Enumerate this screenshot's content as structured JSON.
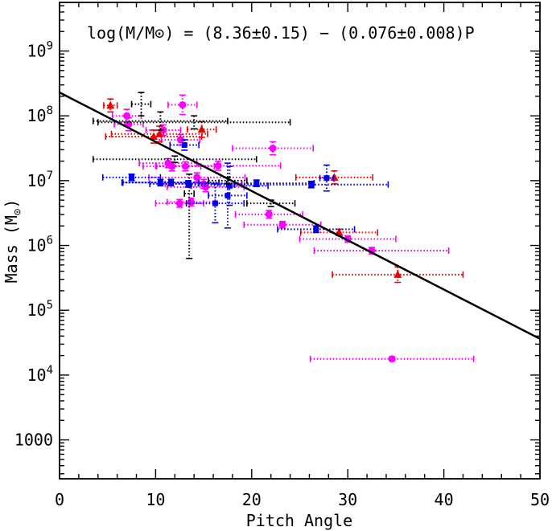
{
  "chart_data": {
    "type": "scatter",
    "title": "",
    "annotation": "log(M/M⊙) = (8.36±0.15) − (0.076±0.008)P",
    "xlabel": "Pitch Angle",
    "ylabel_main": "Mass (M",
    "ylabel_sub": "⊙",
    "ylabel_close": ")",
    "x_scale": "linear",
    "y_scale": "log",
    "xlim": [
      0,
      50
    ],
    "ylim_log10": [
      2.4,
      9.75
    ],
    "grid": false,
    "legend": "none",
    "x_ticks": [
      {
        "v": 0,
        "label": "0"
      },
      {
        "v": 10,
        "label": "10"
      },
      {
        "v": 20,
        "label": "20"
      },
      {
        "v": 30,
        "label": "30"
      },
      {
        "v": 40,
        "label": "40"
      },
      {
        "v": 50,
        "label": "50"
      }
    ],
    "y_ticks": [
      {
        "v": 3,
        "base": "1000",
        "exp": ""
      },
      {
        "v": 4,
        "base": "10",
        "exp": "4"
      },
      {
        "v": 5,
        "base": "10",
        "exp": "5"
      },
      {
        "v": 6,
        "base": "10",
        "exp": "6"
      },
      {
        "v": 7,
        "base": "10",
        "exp": "7"
      },
      {
        "v": 8,
        "base": "10",
        "exp": "8"
      },
      {
        "v": 9,
        "base": "10",
        "exp": "9"
      }
    ],
    "fit_line": {
      "intercept_log10": 8.36,
      "slope_log10_per_deg": -0.076,
      "x_range": [
        0,
        50
      ],
      "color": "#000000"
    },
    "series": [
      {
        "name": "magenta circles",
        "marker": "circle",
        "color": "#ff00ff",
        "points": [
          {
            "x": 34.6,
            "logy": 4.25,
            "xerr": [
              8.5,
              8.5
            ],
            "yerr": [
              0.03,
              0.03
            ]
          },
          {
            "x": 32.5,
            "logy": 5.92,
            "xerr": [
              6.0,
              8.0
            ],
            "yerr": [
              0.05,
              0.05
            ]
          },
          {
            "x": 30.0,
            "logy": 6.1,
            "xerr": [
              5.0,
              5.0
            ],
            "yerr": [
              0.05,
              0.05
            ]
          },
          {
            "x": 23.2,
            "logy": 6.32,
            "xerr": [
              4.0,
              4.0
            ],
            "yerr": [
              0.05,
              0.05
            ]
          },
          {
            "x": 21.8,
            "logy": 6.48,
            "xerr": [
              3.5,
              3.5
            ],
            "yerr": [
              0.06,
              0.06
            ]
          },
          {
            "x": 22.2,
            "logy": 7.5,
            "xerr": [
              4.2,
              4.2
            ],
            "yerr": [
              0.1,
              0.1
            ]
          },
          {
            "x": 12.8,
            "logy": 8.17,
            "xerr": [
              1.5,
              1.5
            ],
            "yerr": [
              0.15,
              0.15
            ]
          },
          {
            "x": 7.0,
            "logy": 8.0,
            "xerr": [
              1.5,
              1.5
            ],
            "yerr": [
              0.1,
              0.1
            ]
          },
          {
            "x": 7.2,
            "logy": 7.87,
            "xerr": [
              1.5,
              1.5
            ],
            "yerr": [
              0.1,
              0.1
            ]
          },
          {
            "x": 10.8,
            "logy": 7.78,
            "xerr": [
              1.8,
              1.8
            ],
            "yerr": [
              0.08,
              0.08
            ]
          },
          {
            "x": 12.6,
            "logy": 7.63,
            "xerr": [
              2.0,
              2.0
            ],
            "yerr": [
              0.08,
              0.08
            ]
          },
          {
            "x": 11.3,
            "logy": 7.27,
            "xerr": [
              3.0,
              3.0
            ],
            "yerr": [
              0.07,
              0.07
            ]
          },
          {
            "x": 11.7,
            "logy": 7.22,
            "xerr": [
              3.0,
              3.0
            ],
            "yerr": [
              0.07,
              0.07
            ]
          },
          {
            "x": 13.1,
            "logy": 7.22,
            "xerr": [
              3.0,
              3.0
            ],
            "yerr": [
              0.07,
              0.07
            ]
          },
          {
            "x": 16.5,
            "logy": 7.23,
            "xerr": [
              6.5,
              6.5
            ],
            "yerr": [
              0.07,
              0.07
            ]
          },
          {
            "x": 14.3,
            "logy": 7.05,
            "xerr": [
              5.0,
              5.0
            ],
            "yerr": [
              0.07,
              0.07
            ]
          },
          {
            "x": 15.0,
            "logy": 6.95,
            "xerr": [
              4.0,
              4.0
            ],
            "yerr": [
              0.07,
              0.07
            ]
          },
          {
            "x": 15.2,
            "logy": 6.9,
            "xerr": [
              4.0,
              4.0
            ],
            "yerr": [
              0.07,
              0.07
            ]
          },
          {
            "x": 12.5,
            "logy": 6.65,
            "xerr": [
              2.5,
              2.5
            ],
            "yerr": [
              0.06,
              0.06
            ]
          },
          {
            "x": 13.7,
            "logy": 6.67,
            "xerr": [
              2.5,
              2.5
            ],
            "yerr": [
              0.06,
              0.06
            ]
          }
        ]
      },
      {
        "name": "red triangles",
        "marker": "triangle",
        "color": "#ee0000",
        "points": [
          {
            "x": 5.3,
            "logy": 8.16,
            "xerr": [
              0.7,
              0.7
            ],
            "yerr": [
              0.1,
              0.1
            ]
          },
          {
            "x": 10.4,
            "logy": 7.72,
            "xerr": [
              5.0,
              5.0
            ],
            "yerr": [
              0.12,
              0.12
            ]
          },
          {
            "x": 14.8,
            "logy": 7.79,
            "xerr": [
              1.5,
              1.5
            ],
            "yerr": [
              0.12,
              0.12
            ]
          },
          {
            "x": 9.8,
            "logy": 7.68,
            "xerr": [
              5.0,
              5.0
            ],
            "yerr": [
              0.1,
              0.1
            ]
          },
          {
            "x": 28.6,
            "logy": 7.05,
            "xerr": [
              4.0,
              4.0
            ],
            "yerr": [
              0.1,
              0.1
            ]
          },
          {
            "x": 29.1,
            "logy": 6.2,
            "xerr": [
              4.0,
              4.0
            ],
            "yerr": [
              0.05,
              0.05
            ]
          },
          {
            "x": 35.2,
            "logy": 5.55,
            "xerr": [
              6.8,
              6.8
            ],
            "yerr": [
              0.12,
              0.12
            ]
          }
        ]
      },
      {
        "name": "blue squares",
        "marker": "square",
        "color": "#0000ee",
        "points": [
          {
            "x": 13.0,
            "logy": 7.55,
            "xerr": [
              1.5,
              1.5
            ],
            "yerr": [
              0.08,
              0.08
            ]
          },
          {
            "x": 7.5,
            "logy": 7.05,
            "xerr": [
              3.0,
              3.0
            ],
            "yerr": [
              0.05,
              0.05
            ]
          },
          {
            "x": 10.5,
            "logy": 6.97,
            "xerr": [
              4.0,
              4.0
            ],
            "yerr": [
              0.05,
              0.05
            ]
          },
          {
            "x": 11.6,
            "logy": 6.97,
            "xerr": [
              5.0,
              5.0
            ],
            "yerr": [
              0.05,
              0.05
            ]
          },
          {
            "x": 13.4,
            "logy": 6.95,
            "xerr": [
              4.0,
              4.0
            ],
            "yerr": [
              0.05,
              0.05
            ]
          },
          {
            "x": 17.7,
            "logy": 6.92,
            "xerr": [
              4.0,
              4.0
            ],
            "yerr": [
              0.3,
              0.3
            ]
          },
          {
            "x": 20.5,
            "logy": 6.96,
            "xerr": [
              6.0,
              6.0
            ],
            "yerr": [
              0.05,
              0.05
            ]
          },
          {
            "x": 26.2,
            "logy": 6.94,
            "xerr": [
              8.0,
              8.0
            ],
            "yerr": [
              0.05,
              0.05
            ]
          },
          {
            "x": 27.8,
            "logy": 7.04,
            "xerr": [
              0.7,
              0.7
            ],
            "yerr": [
              0.2,
              0.2
            ]
          },
          {
            "x": 17.5,
            "logy": 6.77,
            "xerr": [
              2.0,
              2.0
            ],
            "yerr": [
              0.5,
              0.5
            ]
          },
          {
            "x": 16.2,
            "logy": 6.65,
            "xerr": [
              3.0,
              3.0
            ],
            "yerr": [
              0.3,
              0.3
            ]
          },
          {
            "x": 26.7,
            "logy": 6.25,
            "xerr": [
              4.0,
              4.0
            ],
            "yerr": [
              0.05,
              0.05
            ]
          }
        ]
      },
      {
        "name": "black dots",
        "marker": "none",
        "color": "#000000",
        "points": [
          {
            "x": 8.5,
            "logy": 8.18,
            "xerr": [
              1.0,
              1.0
            ],
            "yerr": [
              0.18,
              0.18
            ]
          },
          {
            "x": 14.0,
            "logy": 7.9,
            "xerr": [
              10.0,
              10.0
            ],
            "yerr": [
              0.1,
              0.1
            ]
          },
          {
            "x": 10.5,
            "logy": 7.92,
            "xerr": [
              7.0,
              7.0
            ],
            "yerr": [
              0.14,
              0.14
            ]
          },
          {
            "x": 12.0,
            "logy": 7.33,
            "xerr": [
              8.5,
              8.5
            ],
            "yerr": [
              0.05,
              0.05
            ]
          },
          {
            "x": 17.5,
            "logy": 7.0,
            "xerr": [
              2.0,
              2.0
            ],
            "yerr": [
              0.05,
              0.05
            ]
          },
          {
            "x": 13.5,
            "logy": 6.8,
            "xerr": [
              0.5,
              0.5
            ],
            "yerr": [
              1.0,
              0.3
            ]
          },
          {
            "x": 22.0,
            "logy": 6.65,
            "xerr": [
              2.5,
              2.5
            ],
            "yerr": [
              0.05,
              0.05
            ]
          }
        ]
      }
    ]
  }
}
